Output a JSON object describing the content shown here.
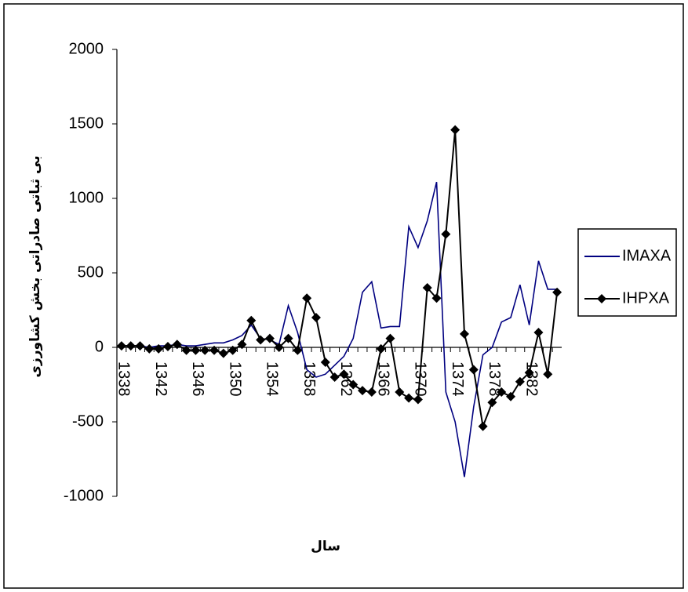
{
  "chart_data": {
    "type": "line",
    "x_label": "سال",
    "y_label": "بی ثباتی صادراتی بخش کشاورزی",
    "categories": [
      "1338",
      null,
      null,
      null,
      "1342",
      null,
      null,
      null,
      "1346",
      null,
      null,
      null,
      "1350",
      null,
      null,
      null,
      "1354",
      null,
      null,
      null,
      "1358",
      null,
      null,
      null,
      "1362",
      null,
      null,
      null,
      "1366",
      null,
      null,
      null,
      "1370",
      null,
      null,
      null,
      "1374",
      null,
      null,
      null,
      "1378",
      null,
      null,
      null,
      "1382",
      null,
      null,
      null
    ],
    "series": [
      {
        "name": "IMAXA",
        "color": "#000080",
        "marker": "none",
        "values": [
          10,
          10,
          10,
          0,
          10,
          10,
          20,
          10,
          10,
          20,
          30,
          30,
          50,
          80,
          150,
          60,
          50,
          20,
          280,
          100,
          -150,
          -200,
          -180,
          -120,
          -60,
          60,
          370,
          440,
          130,
          140,
          140,
          810,
          670,
          850,
          1110,
          -300,
          -500,
          -870,
          -400,
          -50,
          0,
          170,
          200,
          420,
          150,
          580,
          390,
          390
        ]
      },
      {
        "name": "IHPXA",
        "color": "#000000",
        "marker": "diamond",
        "values": [
          10,
          10,
          10,
          -10,
          -10,
          5,
          20,
          -20,
          -20,
          -20,
          -20,
          -40,
          -20,
          20,
          180,
          50,
          60,
          0,
          60,
          -20,
          330,
          200,
          -100,
          -200,
          -180,
          -250,
          -290,
          -300,
          -10,
          60,
          -300,
          -340,
          -350,
          400,
          330,
          760,
          1460,
          90,
          -150,
          -530,
          -370,
          -300,
          -330,
          -230,
          -170,
          100,
          -180,
          370
        ]
      }
    ],
    "ylim": [
      -1000,
      2000
    ],
    "yticks": [
      -1000,
      -500,
      0,
      500,
      1000,
      1500,
      2000
    ],
    "grid": false,
    "legend": "right"
  }
}
